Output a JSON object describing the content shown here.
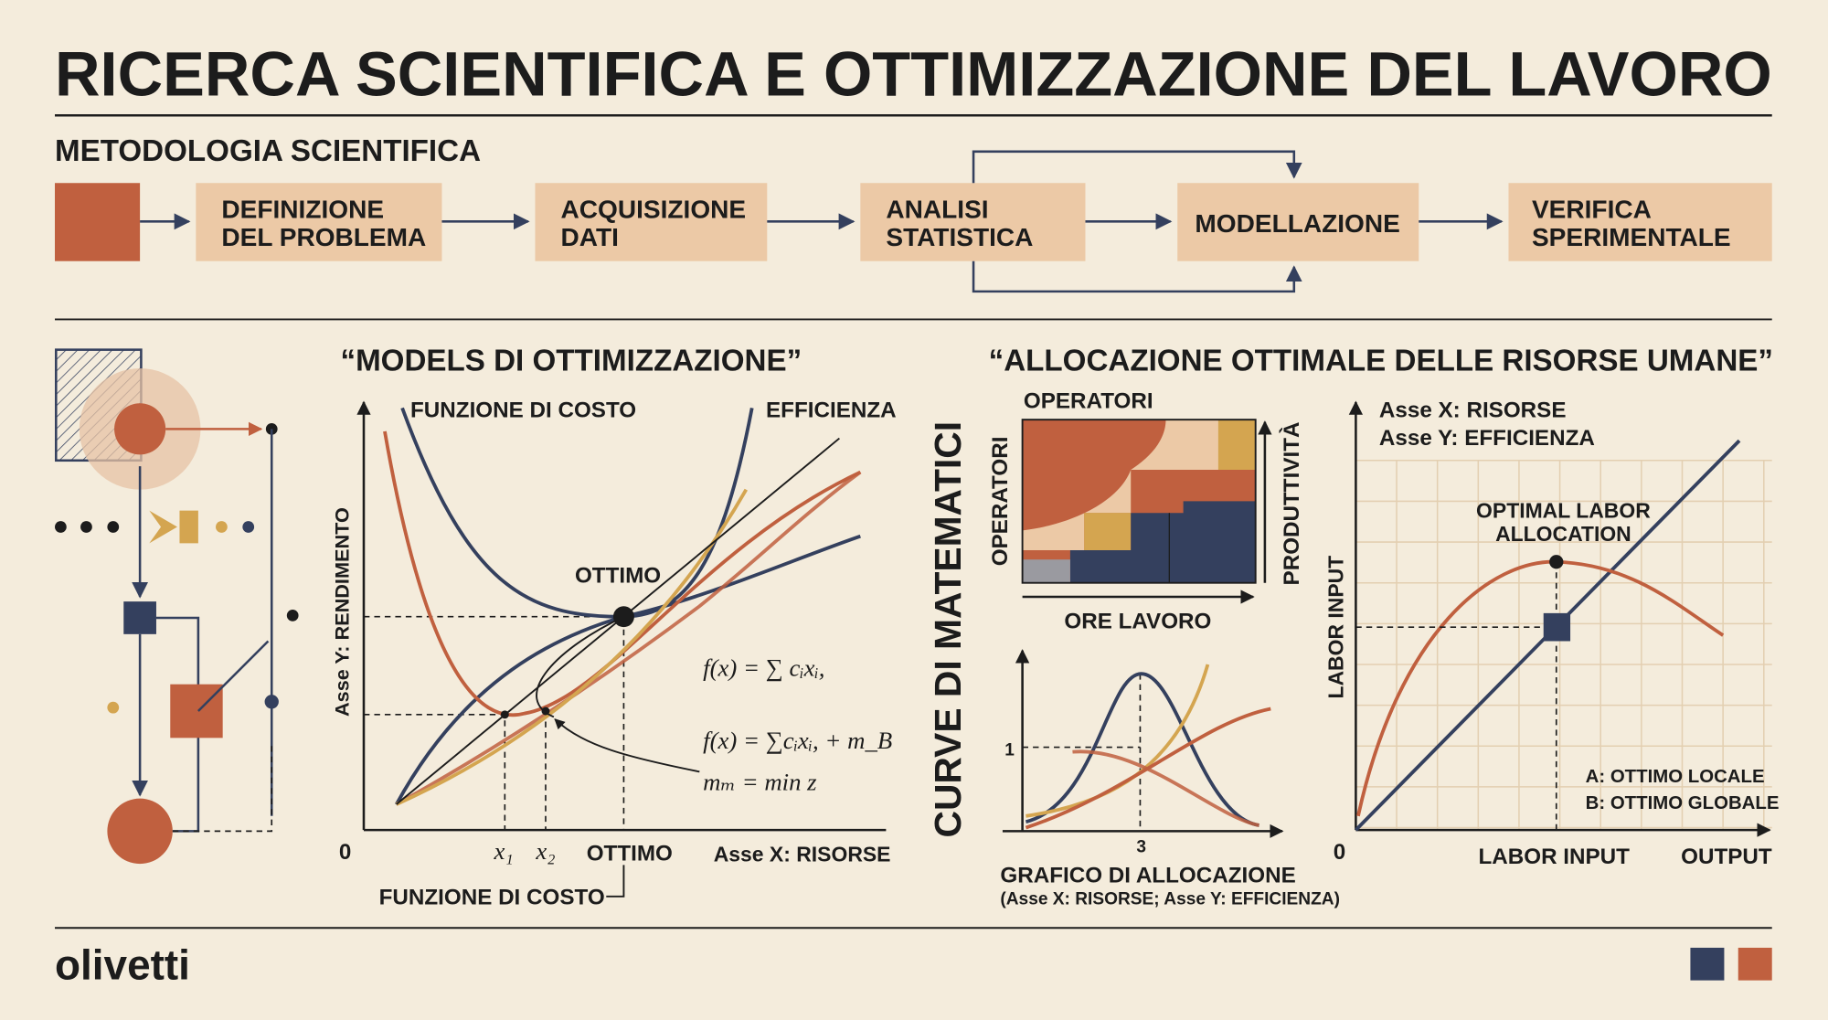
{
  "title": "RICERCA SCIENTIFICA E OTTIMIZZAZIONE DEL LAVORO",
  "methodology": {
    "heading": "METODOLOGIA SCIENTIFICA",
    "steps": [
      [
        "DEFINIZIONE",
        "DEL PROBLEMA"
      ],
      [
        "ACQUISIZIONE",
        "DATI"
      ],
      [
        "ANALISI",
        "STATISTICA"
      ],
      [
        "MODELLAZIONE"
      ],
      [
        "VERIFICA",
        "SPERIMENTALE"
      ]
    ]
  },
  "models": {
    "title": "“MODELS DI OTTIMIZZAZIONE”",
    "curve_labels": [
      "FUNZIONE DI COSTO",
      "EFFICIENZA"
    ],
    "y_axis": "Asse Y: RENDIMENTO",
    "x_axis": "Asse X: RISORSE",
    "origin": "0",
    "optimum": "OTTIMO",
    "x_ticks": [
      "x₁",
      "x₂",
      "OTTIMO"
    ],
    "footer": "FUNZIONE DI COSTO",
    "formulas": [
      "f(x) = ∑ cᵢxᵢ,",
      "f(x) = ∑cᵢxᵢ, + m_B",
      "mₘ = min z"
    ]
  },
  "allocation": {
    "title": "“ALLOCAZIONE OTTIMALE DELLE RISORSE UMANE”",
    "side_label": "CURVE DI MATEMATICI",
    "heatmap": {
      "top": "OPERATORI",
      "left": "OPERATORI",
      "right": "PRODUTTIVITÀ",
      "bottom": "ORE LAVORO"
    },
    "small_chart": {
      "y_tick": "1",
      "x_tick": "3",
      "title": "GRAFICO DI ALLOCAZIONE",
      "subtitle": "(Asse X: RISORSE; Asse Y: EFFICIENZA)"
    },
    "right_chart": {
      "legend": [
        "Asse X: RISORSE",
        "Asse Y: EFFICIENZA"
      ],
      "annotation": [
        "OPTIMAL LABOR",
        "ALLOCATION"
      ],
      "y_label": "LABOR INPUT",
      "x_label": "LABOR INPUT",
      "x_end": "OUTPUT",
      "origin": "0",
      "notes": [
        "A: OTTIMO LOCALE",
        "B: OTTIMO GLOBALE"
      ]
    }
  },
  "footer": {
    "brand": "olivetti"
  }
}
